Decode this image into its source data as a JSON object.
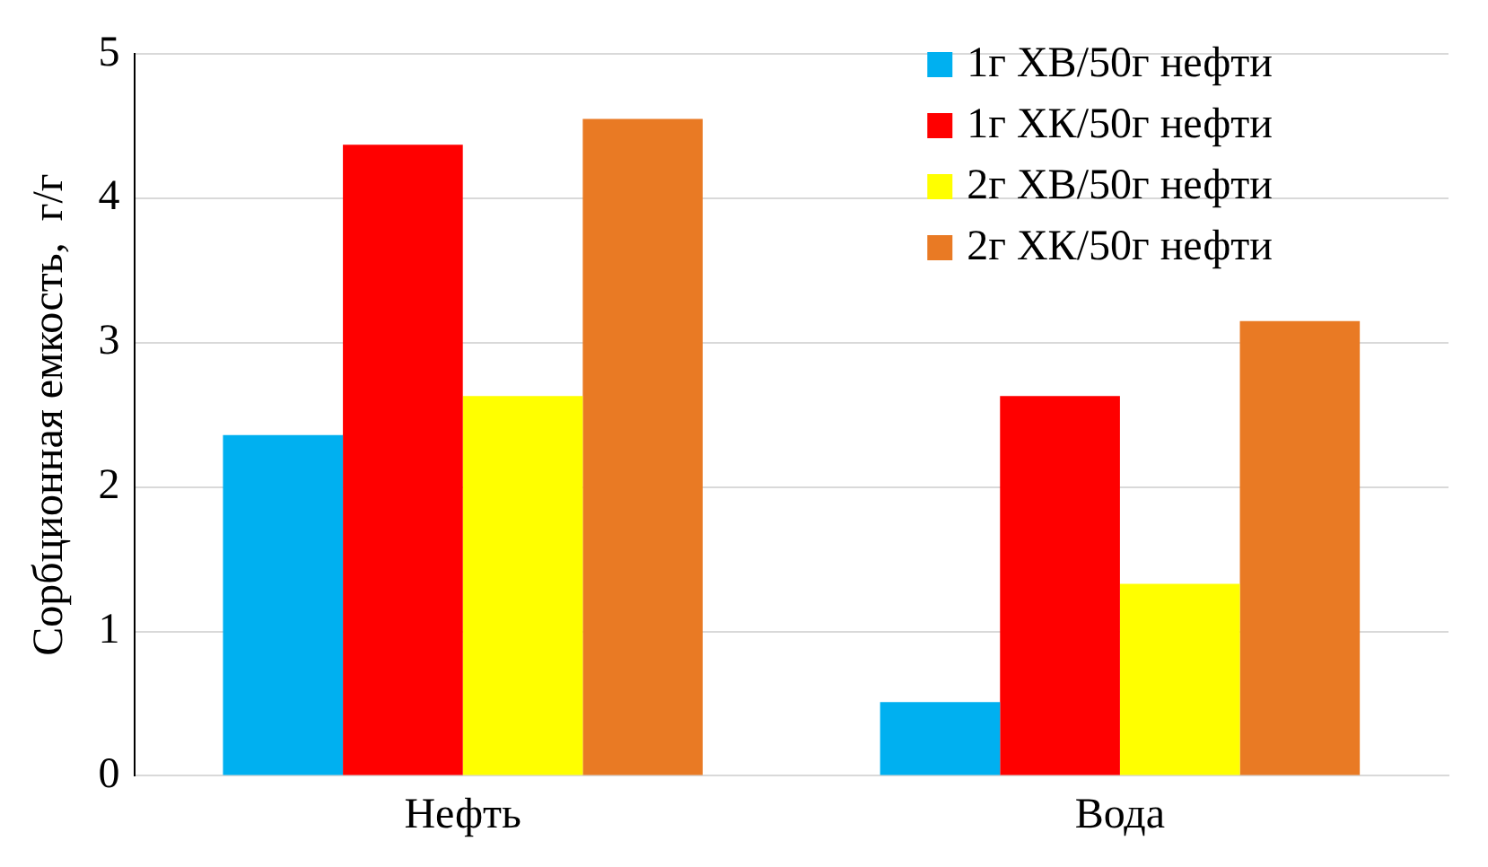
{
  "chart_data": {
    "type": "bar",
    "ylabel": "Сорбционная емкость,  г/г",
    "categories": [
      "Нефть",
      "Вода"
    ],
    "series": [
      {
        "name": "1г ХВ/50г нефти",
        "color": "#00b0f0",
        "values": [
          2.36,
          0.51
        ]
      },
      {
        "name": "1г ХК/50г нефти",
        "color": "#ff0000",
        "values": [
          4.37,
          2.63
        ]
      },
      {
        "name": "2г ХВ/50г нефти",
        "color": "#ffff00",
        "values": [
          2.63,
          1.33
        ]
      },
      {
        "name": "2г ХК/50г нефти",
        "color": "#e97a24",
        "values": [
          4.55,
          3.15
        ]
      }
    ],
    "ylim": [
      0,
      5
    ],
    "yticks": [
      0,
      1,
      2,
      3,
      4,
      5
    ],
    "grid": "y",
    "legend": "top right"
  }
}
